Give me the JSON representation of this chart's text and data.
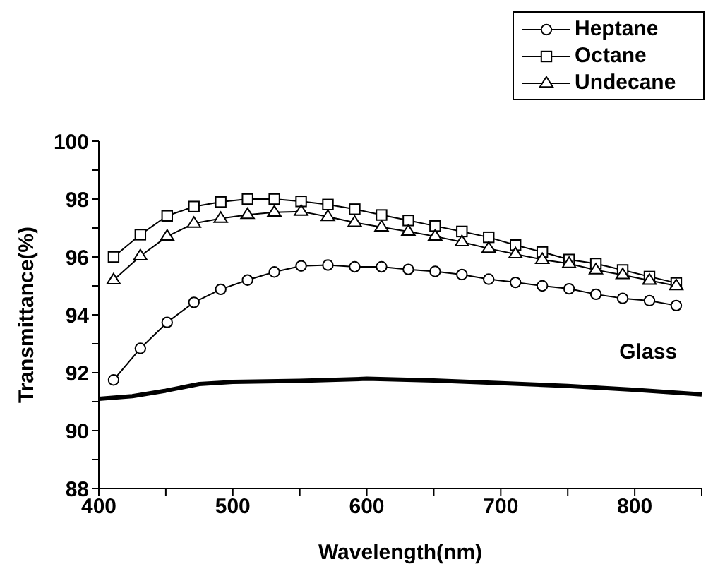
{
  "chart_data": {
    "type": "line",
    "xlabel": "Wavelength(nm)",
    "ylabel": "Transmittance(%)",
    "xlim": [
      400,
      850
    ],
    "ylim": [
      88,
      100
    ],
    "xticks": [
      400,
      {
        "value": 450,
        "label": null
      },
      500,
      {
        "value": 550,
        "label": null
      },
      600,
      {
        "value": 650,
        "label": null
      },
      700,
      {
        "value": 750,
        "label": null
      },
      800,
      {
        "value": 850,
        "label": null
      }
    ],
    "yticks": [
      88,
      {
        "value": 89,
        "label": null
      },
      90,
      {
        "value": 91,
        "label": null
      },
      92,
      {
        "value": 93,
        "label": null
      },
      94,
      {
        "value": 95,
        "label": null
      },
      96,
      {
        "value": 97,
        "label": null
      },
      98,
      {
        "value": 99,
        "label": null
      },
      100
    ],
    "grid": false,
    "legend": "top right",
    "series": [
      {
        "name": "Heptane",
        "color": "#000000",
        "marker": "circle",
        "x": [
          411,
          431,
          451,
          471,
          491,
          511,
          531,
          551,
          571,
          591,
          611,
          631,
          651,
          671,
          691,
          711,
          731,
          751,
          771,
          791,
          811,
          831
        ],
        "values": [
          91.75,
          92.84,
          93.74,
          94.43,
          94.88,
          95.2,
          95.48,
          95.69,
          95.72,
          95.66,
          95.66,
          95.57,
          95.5,
          95.39,
          95.23,
          95.12,
          95.0,
          94.9,
          94.71,
          94.57,
          94.49,
          94.32
        ]
      },
      {
        "name": "Octane",
        "color": "#000000",
        "marker": "square",
        "x": [
          411,
          431,
          451,
          471,
          491,
          511,
          531,
          551,
          571,
          591,
          611,
          631,
          651,
          671,
          691,
          711,
          731,
          751,
          771,
          791,
          811,
          831
        ],
        "values": [
          96.0,
          96.77,
          97.42,
          97.74,
          97.9,
          98.0,
          98.0,
          97.92,
          97.81,
          97.65,
          97.45,
          97.26,
          97.07,
          96.88,
          96.68,
          96.41,
          96.17,
          95.91,
          95.77,
          95.55,
          95.32,
          95.1
        ]
      },
      {
        "name": "Undecane",
        "color": "#000000",
        "marker": "triangle",
        "x": [
          411,
          431,
          451,
          471,
          491,
          511,
          531,
          551,
          571,
          591,
          611,
          631,
          651,
          671,
          691,
          711,
          731,
          751,
          771,
          791,
          811,
          831
        ],
        "values": [
          95.2,
          96.03,
          96.71,
          97.16,
          97.33,
          97.46,
          97.54,
          97.57,
          97.39,
          97.19,
          97.03,
          96.88,
          96.71,
          96.52,
          96.29,
          96.1,
          95.91,
          95.77,
          95.55,
          95.38,
          95.19,
          95.0
        ]
      },
      {
        "name": "Glass",
        "color": "#000000",
        "marker": "none",
        "x": [
          400,
          425,
          450,
          475,
          500,
          550,
          600,
          650,
          700,
          750,
          800,
          850
        ],
        "values": [
          91.1,
          91.19,
          91.38,
          91.61,
          91.68,
          91.72,
          91.79,
          91.73,
          91.64,
          91.54,
          91.41,
          91.25
        ]
      }
    ]
  }
}
